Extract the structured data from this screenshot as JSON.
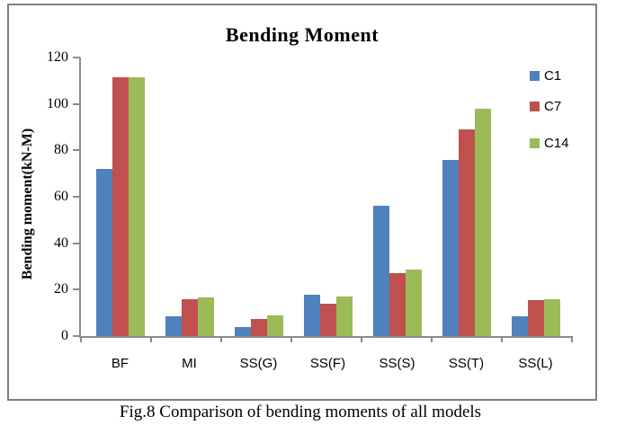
{
  "caption": "Fig.8 Comparison of bending moments of all models",
  "colors": {
    "axis": "#8c8c8c",
    "frame": "#808080",
    "text": "#000000"
  },
  "chart_data": {
    "type": "bar",
    "title": "Bending Moment",
    "xlabel": "",
    "ylabel": "Bending moment(kN-M)",
    "categories": [
      "BF",
      "MI",
      "SS(G)",
      "SS(F)",
      "SS(S)",
      "SS(T)",
      "SS(L)"
    ],
    "series": [
      {
        "name": "C1",
        "color": "#4F81BD",
        "values": [
          72,
          8.5,
          4,
          18,
          56,
          76,
          8.5
        ]
      },
      {
        "name": "C7",
        "color": "#C0504D",
        "values": [
          111.5,
          16,
          7.5,
          14,
          27,
          89,
          15.5
        ]
      },
      {
        "name": "C14",
        "color": "#9BBB59",
        "values": [
          111.5,
          16.5,
          9,
          17,
          28.5,
          98,
          16
        ]
      }
    ],
    "ylim": [
      0,
      120
    ],
    "yticks": [
      0,
      20,
      40,
      60,
      80,
      100,
      120
    ],
    "grid": false,
    "legend_position": "top-right"
  }
}
